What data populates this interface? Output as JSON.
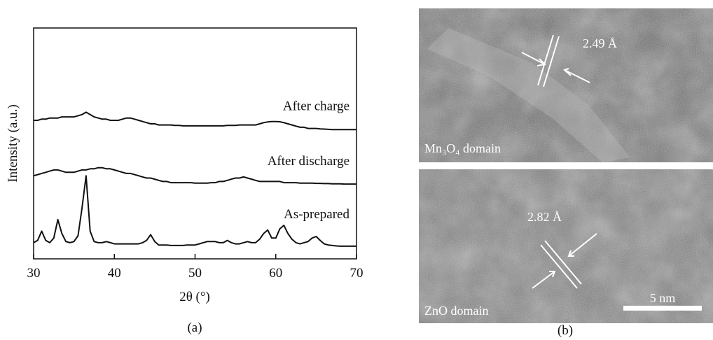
{
  "chart_data": {
    "type": "line",
    "caption": "(a)",
    "xlabel": "2θ (°)",
    "ylabel": "Intensity (a.u.)",
    "xlim": [
      30,
      70
    ],
    "xticks": [
      30,
      40,
      50,
      60,
      70
    ],
    "ylim": [
      0,
      100
    ],
    "x": [
      30,
      30.5,
      31,
      31.5,
      32,
      32.5,
      33,
      33.5,
      34,
      34.5,
      35,
      35.5,
      36,
      36.5,
      37,
      37.5,
      38,
      38.5,
      39,
      39.5,
      40,
      40.5,
      41,
      41.5,
      42,
      42.5,
      43,
      43.5,
      44,
      44.5,
      45,
      45.5,
      46,
      46.5,
      47,
      47.5,
      48,
      48.5,
      49,
      49.5,
      50,
      50.5,
      51,
      51.5,
      52,
      52.5,
      53,
      53.5,
      54,
      54.5,
      55,
      55.5,
      56,
      56.5,
      57,
      57.5,
      58,
      58.5,
      59,
      59.5,
      60,
      60.5,
      61,
      61.5,
      62,
      62.5,
      63,
      63.5,
      64,
      64.5,
      65,
      65.5,
      66,
      66.5,
      67,
      67.5,
      68,
      68.5,
      69,
      69.5,
      70
    ],
    "series": [
      {
        "name": "After charge",
        "color": "#111111",
        "values": [
          60,
          60,
          60.5,
          60.5,
          61,
          61,
          61,
          61.5,
          61.5,
          61.5,
          61.5,
          62,
          62.5,
          63.5,
          62.5,
          61.5,
          61,
          60.5,
          60.5,
          60,
          60,
          60,
          60.5,
          61,
          61,
          60.5,
          60,
          59.5,
          59,
          58.5,
          58.5,
          58,
          58,
          58,
          58,
          57.8,
          57.8,
          57.6,
          57.6,
          57.6,
          57.6,
          57.6,
          57.6,
          57.6,
          57.6,
          57.6,
          57.6,
          57.6,
          57.8,
          57.8,
          57.8,
          58,
          58,
          58,
          58,
          58,
          58.5,
          59,
          59.3,
          59.5,
          59.5,
          59.4,
          59,
          58.5,
          58,
          57.5,
          57,
          57,
          56.5,
          56.5,
          56.5,
          56.3,
          56.2,
          56.1,
          56,
          56,
          56,
          56,
          56,
          56,
          56
        ]
      },
      {
        "name": "After discharge",
        "color": "#111111",
        "values": [
          36,
          36.5,
          37,
          37.5,
          38,
          38.5,
          38.5,
          38,
          37.5,
          37.5,
          37.5,
          38,
          38.5,
          38.5,
          39,
          39,
          39.5,
          39.5,
          39,
          39,
          38.5,
          38,
          37.5,
          37,
          37,
          36.5,
          36,
          35.5,
          35,
          35,
          34.5,
          34,
          33.5,
          33.5,
          33,
          33,
          33,
          33,
          33,
          33,
          32.8,
          32.8,
          32.8,
          32.8,
          33,
          33,
          33.5,
          33.5,
          34,
          34.5,
          35,
          35,
          35.5,
          35,
          34.5,
          34,
          33.5,
          33.5,
          33.5,
          33.5,
          33.5,
          33.5,
          33,
          33,
          33,
          33,
          32.8,
          32.8,
          32.8,
          32.8,
          32.7,
          32.7,
          32.6,
          32.6,
          32.5,
          32.5,
          32.5,
          32.4,
          32.4,
          32.4,
          32.4
        ]
      },
      {
        "name": "As-prepared",
        "color": "#111111",
        "values": [
          7,
          8,
          12,
          8,
          7,
          9,
          17,
          11,
          7.5,
          7,
          7.5,
          10,
          22,
          36,
          12,
          7.5,
          7,
          7,
          7.5,
          7,
          6.5,
          6.5,
          6.5,
          6.5,
          6.5,
          6.5,
          6.5,
          7,
          8,
          10.5,
          7.5,
          6,
          6,
          6,
          5.8,
          5.8,
          5.8,
          5.8,
          6,
          6,
          6,
          6.5,
          7,
          7.5,
          7.5,
          7.5,
          7,
          7,
          8,
          7,
          6.5,
          6.5,
          7,
          7.5,
          7,
          7,
          8.5,
          11,
          12.5,
          9,
          9,
          13,
          14.5,
          11,
          8.5,
          7,
          6.5,
          7,
          7.5,
          9,
          9.7,
          8,
          6.5,
          6,
          5.8,
          5.6,
          5.5,
          5.5,
          5.5,
          5.5,
          5.5
        ]
      }
    ]
  },
  "panels": {
    "caption": "(b)",
    "images": [
      {
        "label": "Mn₃O₄ domain",
        "spacing": "2.49 Å"
      },
      {
        "label": "ZnO domain",
        "spacing": "2.82 Å",
        "scale_bar": "5 nm"
      }
    ]
  }
}
